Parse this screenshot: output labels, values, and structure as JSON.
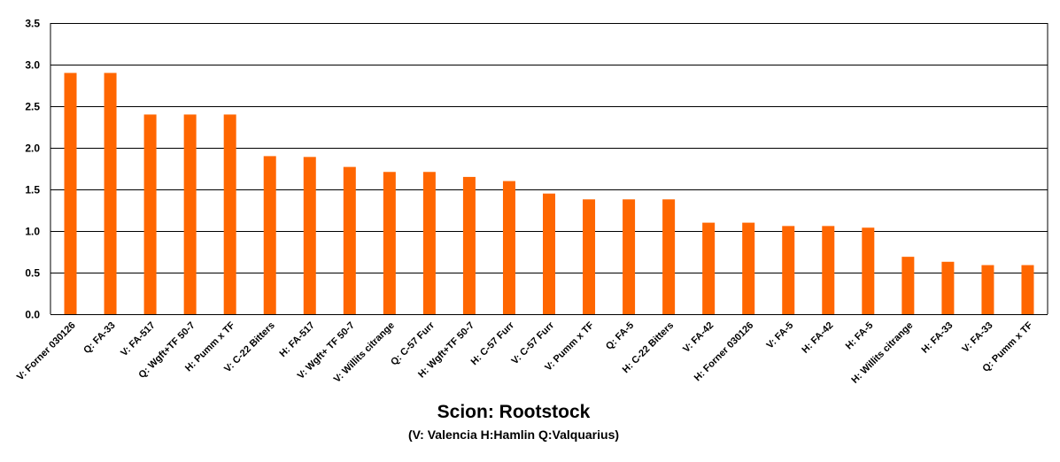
{
  "chart_data": {
    "type": "bar",
    "categories": [
      "V: Forner 030126",
      "Q: FA-33",
      "V: FA-517",
      "Q: Wgft+TF 50-7",
      "H: Pumm x TF",
      "V: C-22 Bitters",
      "H: FA-517",
      "V: Wgft+ TF 50-7",
      "V: Willits citrange",
      "Q: C-57 Furr",
      "H: Wgft+TF 50-7",
      "H: C-57 Furr",
      "V: C-57 Furr",
      "V: Pumm x TF",
      "Q: FA-5",
      "H: C-22 Bitters",
      "V: FA-42",
      "H: Forner 030126",
      "V: FA-5",
      "H: FA-42",
      "H: FA-5",
      "H: Willits citrange",
      "H: FA-33",
      "V: FA-33",
      "Q: Pumm x TF"
    ],
    "values": [
      2.9,
      2.9,
      2.4,
      2.4,
      2.4,
      1.9,
      1.89,
      1.77,
      1.71,
      1.71,
      1.65,
      1.6,
      1.45,
      1.38,
      1.38,
      1.38,
      1.1,
      1.1,
      1.06,
      1.06,
      1.04,
      0.69,
      0.63,
      0.59,
      0.59
    ],
    "ylim": [
      0,
      3.5
    ],
    "yticks": [
      "0.0",
      "0.5",
      "1.0",
      "1.5",
      "2.0",
      "2.5",
      "3.0",
      "3.5"
    ],
    "xlabel": "Scion: Rootstock",
    "xlabel_sub": "(V: Valencia   H:Hamlin  Q:Valquarius)",
    "ylabel": "",
    "grid": true,
    "bar_color": "#ff6600",
    "grid_color": "#000000"
  }
}
